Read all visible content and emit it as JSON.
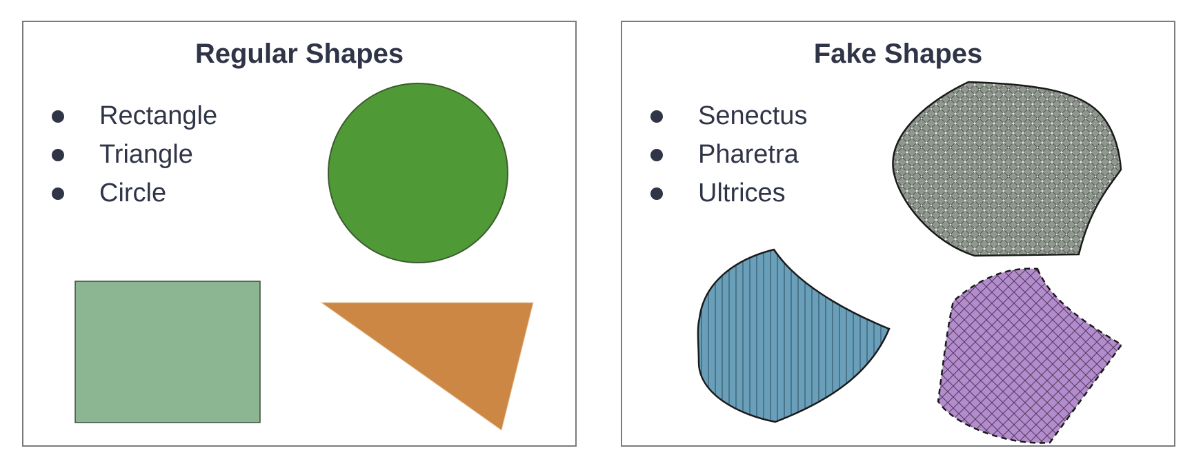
{
  "left_panel": {
    "title": "Regular Shapes",
    "items": [
      "Rectangle",
      "Triangle",
      "Circle"
    ],
    "shapes": [
      {
        "kind": "circle",
        "fill": "#4f9a36"
      },
      {
        "kind": "rectangle",
        "fill": "#8cb592"
      },
      {
        "kind": "triangle",
        "fill": "#cb8743"
      }
    ]
  },
  "right_panel": {
    "title": "Fake Shapes",
    "items": [
      "Senectus",
      "Pharetra",
      "Ultrices"
    ],
    "shapes": [
      {
        "kind": "blob",
        "fill": "#8f978f",
        "pattern": "diamond-dots"
      },
      {
        "kind": "blob",
        "fill": "#6a9fba",
        "pattern": "vertical-lines"
      },
      {
        "kind": "blob",
        "fill": "#b48ccd",
        "pattern": "crosshatch",
        "outline": "dashed"
      }
    ]
  },
  "colors": {
    "text": "#2f3447",
    "border": "#7b7b7f",
    "stroke": "#2e3a2a"
  }
}
